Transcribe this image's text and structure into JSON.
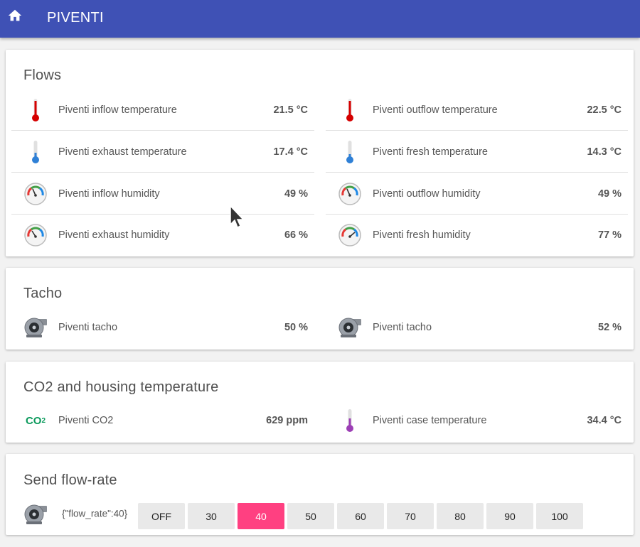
{
  "app": {
    "title": "PIVENTI"
  },
  "flows": {
    "title": "Flows",
    "left": [
      {
        "label": "Piventi inflow temperature",
        "value": "21.5 °C",
        "icon": "thermometer-hot-icon"
      },
      {
        "label": "Piventi exhaust temperature",
        "value": "17.4 °C",
        "icon": "thermometer-cold-icon"
      },
      {
        "label": "Piventi inflow humidity",
        "value": "49 %",
        "icon": "hygrometer-icon"
      },
      {
        "label": "Piventi exhaust humidity",
        "value": "66 %",
        "icon": "hygrometer-icon"
      }
    ],
    "right": [
      {
        "label": "Piventi outflow temperature",
        "value": "22.5 °C",
        "icon": "thermometer-hot-icon"
      },
      {
        "label": "Piventi fresh temperature",
        "value": "14.3 °C",
        "icon": "thermometer-cold-icon"
      },
      {
        "label": "Piventi outflow humidity",
        "value": "49 %",
        "icon": "hygrometer-icon"
      },
      {
        "label": "Piventi fresh humidity",
        "value": "77 %",
        "icon": "hygrometer-icon"
      }
    ]
  },
  "tacho": {
    "title": "Tacho",
    "left": {
      "label": "Piventi tacho",
      "value": "50 %",
      "icon": "fan-icon"
    },
    "right": {
      "label": "Piventi tacho",
      "value": "52 %",
      "icon": "fan-icon"
    }
  },
  "co2": {
    "title": "CO2 and housing temperature",
    "icon_text": "CO",
    "icon_sub": "2",
    "left": {
      "label": "Piventi CO2",
      "value": "629 ppm",
      "icon": "co2-icon"
    },
    "right": {
      "label": "Piventi case temperature",
      "value": "34.4 °C",
      "icon": "thermometer-case-icon"
    }
  },
  "send": {
    "title": "Send flow-rate",
    "status": "{\"flow_rate\":40}",
    "buttons": [
      "OFF",
      "30",
      "40",
      "50",
      "60",
      "70",
      "80",
      "90",
      "100"
    ],
    "active": "40"
  },
  "colors": {
    "header": "#3f51b5",
    "accent": "#ff4081",
    "thermo_hot": "#d50000",
    "thermo_cold": "#2f80d6",
    "thermo_case": "#9c3fb5",
    "co2": "#0b9a5c"
  }
}
